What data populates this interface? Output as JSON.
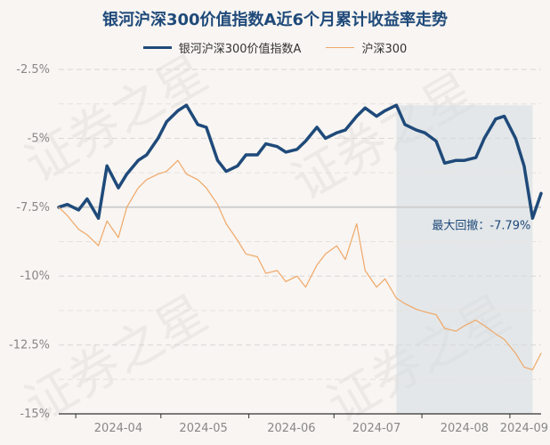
{
  "chart_data": {
    "type": "line",
    "title": "银河沪深300价值指数A近6个月累计收益率走势",
    "y_tick_labels": [
      "-2.5%",
      "-5%",
      "-7.5%",
      "-10%",
      "-12.5%",
      "-15%"
    ],
    "ylim": [
      -15,
      -2.5
    ],
    "x_tick_labels": [
      "2024-04",
      "2024-05",
      "2024-06",
      "2024-07",
      "2024-08",
      "2024-09"
    ],
    "xlim": [
      "2024-03-26",
      "2024-09-12"
    ],
    "legend_position": "top",
    "grid": "horizontal-dashed",
    "reference_line": -7.5,
    "drawdown": {
      "label": "最大回撤：-7.79%",
      "start": "2024-07-23",
      "end": "2024-09-09"
    },
    "watermark_text": "证券之星",
    "series": [
      {
        "name": "银河沪深300价值指数A",
        "color": "#1f4a7a",
        "x": [
          "2024-03-26",
          "2024-03-29",
          "2024-04-02",
          "2024-04-05",
          "2024-04-09",
          "2024-04-12",
          "2024-04-16",
          "2024-04-19",
          "2024-04-23",
          "2024-04-26",
          "2024-04-30",
          "2024-05-03",
          "2024-05-07",
          "2024-05-10",
          "2024-05-14",
          "2024-05-17",
          "2024-05-21",
          "2024-05-24",
          "2024-05-28",
          "2024-05-31",
          "2024-06-04",
          "2024-06-07",
          "2024-06-11",
          "2024-06-14",
          "2024-06-18",
          "2024-06-21",
          "2024-06-25",
          "2024-06-28",
          "2024-07-02",
          "2024-07-05",
          "2024-07-09",
          "2024-07-12",
          "2024-07-16",
          "2024-07-19",
          "2024-07-23",
          "2024-07-26",
          "2024-07-30",
          "2024-08-02",
          "2024-08-06",
          "2024-08-09",
          "2024-08-13",
          "2024-08-16",
          "2024-08-20",
          "2024-08-23",
          "2024-08-27",
          "2024-08-30",
          "2024-09-03",
          "2024-09-06",
          "2024-09-09",
          "2024-09-12"
        ],
        "values": [
          -7.5,
          -7.4,
          -7.6,
          -7.2,
          -7.9,
          -6.0,
          -6.8,
          -6.3,
          -5.8,
          -5.6,
          -5.0,
          -4.4,
          -4.0,
          -3.8,
          -4.5,
          -4.6,
          -5.8,
          -6.2,
          -6.0,
          -5.6,
          -5.6,
          -5.2,
          -5.3,
          -5.5,
          -5.4,
          -5.1,
          -4.6,
          -5.0,
          -4.8,
          -4.7,
          -4.2,
          -3.9,
          -4.2,
          -4.0,
          -3.8,
          -4.5,
          -4.7,
          -4.8,
          -5.1,
          -5.9,
          -5.8,
          -5.8,
          -5.7,
          -5.0,
          -4.3,
          -4.2,
          -5.0,
          -6.0,
          -7.9,
          -7.0
        ]
      },
      {
        "name": "沪深300",
        "color": "#f0a868",
        "x": [
          "2024-03-26",
          "2024-03-29",
          "2024-04-02",
          "2024-04-05",
          "2024-04-09",
          "2024-04-12",
          "2024-04-16",
          "2024-04-19",
          "2024-04-23",
          "2024-04-26",
          "2024-04-30",
          "2024-05-03",
          "2024-05-07",
          "2024-05-10",
          "2024-05-14",
          "2024-05-17",
          "2024-05-21",
          "2024-05-24",
          "2024-05-28",
          "2024-05-31",
          "2024-06-04",
          "2024-06-07",
          "2024-06-11",
          "2024-06-14",
          "2024-06-18",
          "2024-06-21",
          "2024-06-25",
          "2024-06-28",
          "2024-07-02",
          "2024-07-05",
          "2024-07-09",
          "2024-07-12",
          "2024-07-16",
          "2024-07-19",
          "2024-07-23",
          "2024-07-26",
          "2024-07-30",
          "2024-08-02",
          "2024-08-06",
          "2024-08-09",
          "2024-08-13",
          "2024-08-16",
          "2024-08-20",
          "2024-08-23",
          "2024-08-27",
          "2024-08-30",
          "2024-09-03",
          "2024-09-06",
          "2024-09-09",
          "2024-09-12"
        ],
        "values": [
          -7.5,
          -7.8,
          -8.3,
          -8.5,
          -8.9,
          -8.0,
          -8.6,
          -7.5,
          -6.8,
          -6.5,
          -6.3,
          -6.2,
          -5.8,
          -6.3,
          -6.5,
          -6.8,
          -7.4,
          -8.1,
          -8.7,
          -9.2,
          -9.3,
          -9.9,
          -9.8,
          -10.2,
          -10.0,
          -10.4,
          -9.6,
          -9.2,
          -8.9,
          -9.4,
          -8.1,
          -9.8,
          -10.4,
          -10.1,
          -10.8,
          -11.0,
          -11.2,
          -11.3,
          -11.4,
          -11.9,
          -12.0,
          -11.8,
          -11.6,
          -11.8,
          -12.1,
          -12.3,
          -12.8,
          -13.3,
          -13.4,
          -12.8
        ]
      }
    ]
  }
}
